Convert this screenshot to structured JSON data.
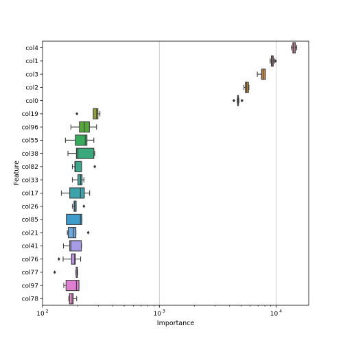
{
  "chart_data": {
    "type": "boxplot",
    "orientation": "horizontal",
    "title": "",
    "xlabel": "Importance",
    "ylabel": "Feature",
    "xscale": "log",
    "xlim": [
      100,
      19000
    ],
    "x_ticks": [
      {
        "value": 100,
        "label": "10",
        "exp": "2"
      },
      {
        "value": 1000,
        "label": "10",
        "exp": "3"
      },
      {
        "value": 10000,
        "label": "10",
        "exp": "4"
      }
    ],
    "grid": "vertical at major ticks",
    "series": [
      {
        "feature": "col4",
        "color": "#dc7f95",
        "whislo": 13500,
        "q1": 13900,
        "med": 14200,
        "q3": 14600,
        "whishi": 15000,
        "fliers": []
      },
      {
        "feature": "col1",
        "color": "#c8847a",
        "whislo": 8900,
        "q1": 9100,
        "med": 9250,
        "q3": 9450,
        "whishi": 9700,
        "fliers": [
          9900
        ]
      },
      {
        "feature": "col3",
        "color": "#c98a3e",
        "whislo": 6900,
        "q1": 7500,
        "med": 7750,
        "q3": 8100,
        "whishi": 8100,
        "fliers": []
      },
      {
        "feature": "col2",
        "color": "#c0913a",
        "whislo": 5300,
        "q1": 5450,
        "med": 5600,
        "q3": 5800,
        "whishi": 5850,
        "fliers": []
      },
      {
        "feature": "col0",
        "color": "#a39538",
        "whislo": 4650,
        "q1": 4680,
        "med": 4720,
        "q3": 4760,
        "whishi": 4800,
        "fliers": [
          4350,
          5100
        ]
      },
      {
        "feature": "col19",
        "color": "#93a03a",
        "whislo": 272,
        "q1": 272,
        "med": 290,
        "q3": 298,
        "whishi": 310,
        "fliers": [
          197
        ]
      },
      {
        "feature": "col96",
        "color": "#57a83c",
        "whislo": 175,
        "q1": 207,
        "med": 228,
        "q3": 252,
        "whishi": 290,
        "fliers": []
      },
      {
        "feature": "col55",
        "color": "#36ab5e",
        "whislo": 157,
        "q1": 191,
        "med": 232,
        "q3": 240,
        "whishi": 275,
        "fliers": []
      },
      {
        "feature": "col38",
        "color": "#38a97a",
        "whislo": 165,
        "q1": 195,
        "med": 201,
        "q3": 275,
        "whishi": 280,
        "fliers": []
      },
      {
        "feature": "col82",
        "color": "#39a78c",
        "whislo": 180,
        "q1": 189,
        "med": 191,
        "q3": 216,
        "whishi": 216,
        "fliers": [
          280
        ]
      },
      {
        "feature": "col33",
        "color": "#3aa69b",
        "whislo": 180,
        "q1": 201,
        "med": 212,
        "q3": 218,
        "whishi": 226,
        "fliers": []
      },
      {
        "feature": "col17",
        "color": "#3ba3aa",
        "whislo": 145,
        "q1": 171,
        "med": 211,
        "q3": 228,
        "whishi": 253,
        "fliers": []
      },
      {
        "feature": "col26",
        "color": "#3ca0b9",
        "whislo": 180,
        "q1": 186,
        "med": 188,
        "q3": 194,
        "whishi": 194,
        "fliers": [
          226
        ]
      },
      {
        "feature": "col85",
        "color": "#3d9ccb",
        "whislo": 160,
        "q1": 160,
        "med": 211,
        "q3": 217,
        "whishi": 217,
        "fliers": []
      },
      {
        "feature": "col21",
        "color": "#6caadd",
        "whislo": 163,
        "q1": 166,
        "med": 184,
        "q3": 193,
        "whishi": 193,
        "fliers": [
          246
        ]
      },
      {
        "feature": "col41",
        "color": "#a69ce6",
        "whislo": 151,
        "q1": 171,
        "med": 175,
        "q3": 215,
        "whishi": 216,
        "fliers": []
      },
      {
        "feature": "col76",
        "color": "#ba8ee9",
        "whislo": 150,
        "q1": 177,
        "med": 188,
        "q3": 191,
        "whishi": 212,
        "fliers": [
          138
        ]
      },
      {
        "feature": "col77",
        "color": "#c996e3",
        "whislo": 193,
        "q1": 194,
        "med": 198,
        "q3": 199,
        "whishi": 200,
        "fliers": [
          127
        ]
      },
      {
        "feature": "col97",
        "color": "#e07fd2",
        "whislo": 152,
        "q1": 159,
        "med": 195,
        "q3": 205,
        "whishi": 205,
        "fliers": []
      },
      {
        "feature": "col78",
        "color": "#e58bc4",
        "whislo": 168,
        "q1": 170,
        "med": 179,
        "q3": 183,
        "whishi": 196,
        "fliers": []
      }
    ]
  }
}
